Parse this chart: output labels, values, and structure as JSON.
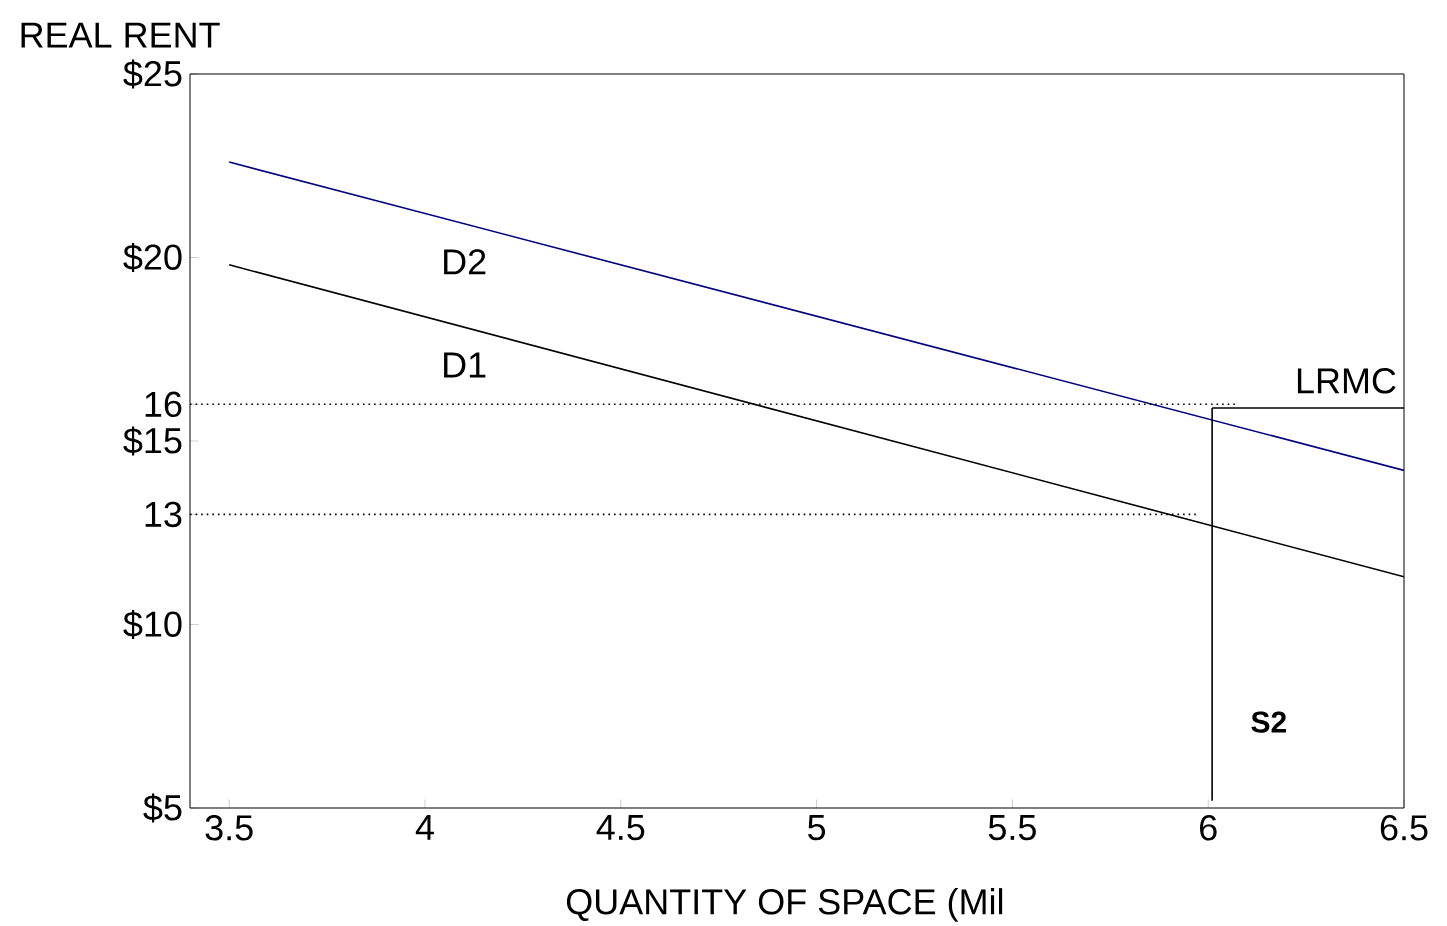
{
  "chart_data": {
    "type": "line",
    "xlabel": "QUANTITY OF SPACE (Mil",
    "ylabel": "REAL RENT",
    "xlim": [
      3.4,
      6.5
    ],
    "ylim": [
      5,
      25
    ],
    "xticks": [
      3.5,
      4,
      4.5,
      5,
      5.5,
      6,
      6.5
    ],
    "yticks": [
      {
        "value": 5,
        "label": "$5"
      },
      {
        "value": 10,
        "label": "$10"
      },
      {
        "value": 13,
        "label": "13"
      },
      {
        "value": 15,
        "label": "$15"
      },
      {
        "value": 16,
        "label": "16"
      },
      {
        "value": 20,
        "label": "$20"
      },
      {
        "value": 25,
        "label": "$25"
      }
    ],
    "series": [
      {
        "name": "D2",
        "color": "#000080",
        "x": [
          3.5,
          6.5
        ],
        "values": [
          22.6,
          14.2
        ]
      },
      {
        "name": "D1",
        "color": "#000000",
        "x": [
          3.5,
          6.5
        ],
        "values": [
          19.8,
          11.3
        ]
      },
      {
        "name": "LRMC",
        "color": "#000000",
        "x": [
          6.01,
          6.5
        ],
        "values": [
          15.9,
          15.9
        ]
      },
      {
        "name": "S2",
        "color": "#000000",
        "x": [
          6.01,
          6.01
        ],
        "values": [
          5.2,
          15.9
        ]
      },
      {
        "color": "#000000",
        "line_style": "dotted",
        "x": [
          3.4,
          6.07
        ],
        "values": [
          16,
          16
        ]
      },
      {
        "color": "#000000",
        "line_style": "dotted",
        "x": [
          3.4,
          5.97
        ],
        "values": [
          13,
          13
        ]
      }
    ]
  }
}
